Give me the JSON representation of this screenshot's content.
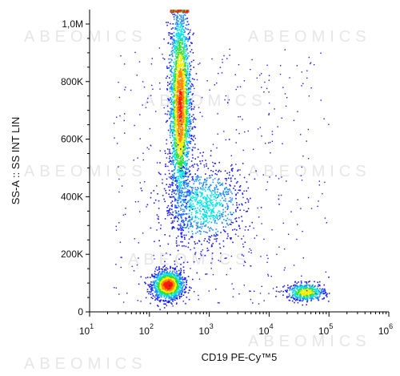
{
  "chart_data": {
    "type": "scatter",
    "subtype": "flow-cytometry density dot plot",
    "watermark": "ABEOMICS",
    "xlabel": "CD19 PE-Cy™5",
    "ylabel": "SS-A :: SS INT LIN",
    "x_scale": "log",
    "xlim": [
      10,
      1000000
    ],
    "ylim": [
      0,
      1050000
    ],
    "x_ticks": [
      {
        "value": 10,
        "base": "10",
        "exp": "1"
      },
      {
        "value": 100,
        "base": "10",
        "exp": "2"
      },
      {
        "value": 1000,
        "base": "10",
        "exp": "3"
      },
      {
        "value": 10000,
        "base": "10",
        "exp": "4"
      },
      {
        "value": 100000,
        "base": "10",
        "exp": "5"
      },
      {
        "value": 1000000,
        "base": "10",
        "exp": "6"
      }
    ],
    "y_ticks": [
      {
        "value": 0,
        "label": "0"
      },
      {
        "value": 200000,
        "label": "200K"
      },
      {
        "value": 400000,
        "label": "400K"
      },
      {
        "value": 600000,
        "label": "600K"
      },
      {
        "value": 800000,
        "label": "800K"
      },
      {
        "value": 1000000,
        "label": "1,0M"
      }
    ],
    "grid": false,
    "color_scale": [
      "#1a1aff",
      "#1e8cff",
      "#00e5e5",
      "#33dd33",
      "#ffee00",
      "#ff8800",
      "#ff1a00"
    ],
    "populations": [
      {
        "x_center": 200,
        "y_center": 95000,
        "x_spread_decades": 0.13,
        "y_spread": 25000,
        "events": 1400,
        "peak_density": "high"
      },
      {
        "x_center": 320,
        "y_center": 720000,
        "x_spread_decades": 0.09,
        "y_spread": 180000,
        "events": 2600,
        "peak_density": "medium-high"
      },
      {
        "x_center": 800,
        "y_center": 370000,
        "x_spread_decades": 0.35,
        "y_spread": 70000,
        "events": 900,
        "peak_density": "low"
      },
      {
        "x_center": 40000,
        "y_center": 70000,
        "x_spread_decades": 0.16,
        "y_spread": 15000,
        "events": 500,
        "peak_density": "medium"
      }
    ]
  }
}
